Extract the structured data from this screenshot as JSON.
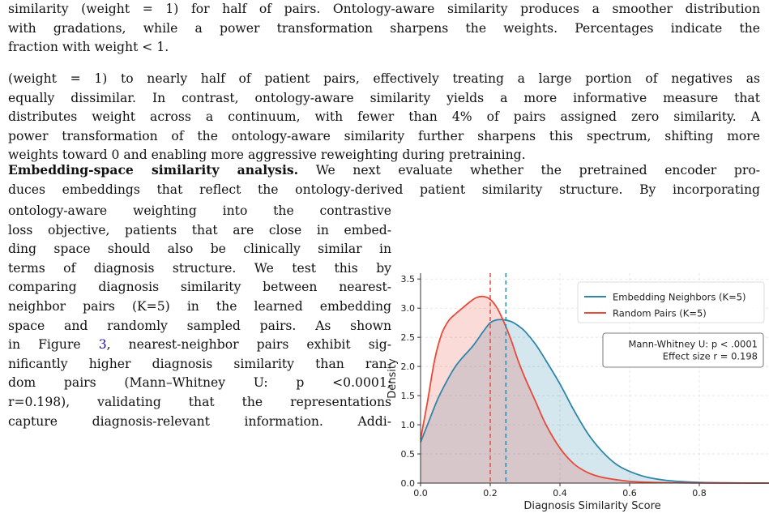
{
  "caption": {
    "lines": [
      "similarity (weight = 1) for half of pairs. Ontology-aware similarity produces a smoother distribution",
      "with gradations, while a power transformation sharpens the weights. Percentages indicate the",
      "fraction with weight < 1."
    ]
  },
  "body1": {
    "lines": [
      "(weight = 1) to nearly half of patient pairs, effectively treating a large portion of negatives as",
      "equally dissimilar. In contrast, ontology-aware similarity yields a more informative measure that",
      "distributes weight across a continuum, with fewer than 4% of pairs assigned zero similarity. A",
      "power transformation of the ontology-aware similarity further sharpens this spectrum, shifting more",
      "weights toward 0 and enabling more aggressive reweighting during pretraining."
    ]
  },
  "body2": {
    "heading": "Embedding-space similarity analysis.",
    "line1_rest": " We next evaluate whether the pretrained encoder pro-",
    "line2": "duces embeddings that reflect the ontology-derived patient similarity structure. By incorporating"
  },
  "left_column": {
    "lines": [
      "ontology-aware weighting into the contrastive",
      "loss objective, patients that are close in embed-",
      "ding space should also be clinically similar in",
      "terms of diagnosis structure. We test this by",
      "comparing diagnosis similarity between nearest-",
      "neighbor pairs (K=5) in the learned embedding",
      "space and randomly sampled pairs. As shown"
    ],
    "line8_pre": "in Figure ",
    "figure_ref": "3",
    "line8_post": ", nearest-neighbor pairs exhibit sig-",
    "lines_after": [
      "nificantly higher diagnosis similarity than ran-",
      "dom pairs (Mann–Whitney U:  p  <0.0001;",
      "r=0.198), validating that the representations",
      "capture diagnosis-relevant information. Addi-"
    ]
  },
  "chart_data": {
    "type": "area",
    "xlabel": "Diagnosis Similarity Score",
    "ylabel": "Density",
    "xlim": [
      0.0,
      1.0
    ],
    "ylim": [
      0.0,
      3.6
    ],
    "xticks": [
      "0.0",
      "0.2",
      "0.4",
      "0.6",
      "0.8"
    ],
    "yticks": [
      "0.0",
      "0.5",
      "1.0",
      "1.5",
      "2.0",
      "2.5",
      "3.0",
      "3.5"
    ],
    "grid": true,
    "legend_position": "top-right",
    "series": [
      {
        "name": "Embedding Neighbors (K=5)",
        "color": "#2e86ab",
        "mean": 0.245,
        "x": [
          0.0,
          0.02,
          0.05,
          0.08,
          0.1,
          0.12,
          0.15,
          0.18,
          0.2,
          0.22,
          0.24,
          0.26,
          0.28,
          0.3,
          0.33,
          0.36,
          0.4,
          0.44,
          0.48,
          0.52,
          0.56,
          0.6,
          0.65,
          0.7,
          0.75,
          0.8,
          0.85,
          0.9,
          0.95,
          1.0
        ],
        "y": [
          0.7,
          1.0,
          1.45,
          1.8,
          2.0,
          2.15,
          2.35,
          2.6,
          2.75,
          2.8,
          2.8,
          2.77,
          2.7,
          2.6,
          2.38,
          2.1,
          1.7,
          1.25,
          0.85,
          0.55,
          0.33,
          0.2,
          0.1,
          0.05,
          0.025,
          0.012,
          0.006,
          0.003,
          0.001,
          0.0
        ]
      },
      {
        "name": "Random Pairs (K=5)",
        "color": "#e84a3a",
        "mean": 0.2,
        "x": [
          0.0,
          0.02,
          0.04,
          0.06,
          0.08,
          0.1,
          0.12,
          0.14,
          0.16,
          0.18,
          0.2,
          0.22,
          0.24,
          0.26,
          0.28,
          0.3,
          0.33,
          0.36,
          0.4,
          0.44,
          0.48,
          0.52,
          0.56,
          0.6,
          0.65,
          0.7,
          0.8,
          0.9,
          1.0
        ],
        "y": [
          0.75,
          1.4,
          2.1,
          2.55,
          2.78,
          2.9,
          3.0,
          3.1,
          3.18,
          3.2,
          3.15,
          3.0,
          2.75,
          2.45,
          2.1,
          1.8,
          1.4,
          1.0,
          0.6,
          0.33,
          0.18,
          0.1,
          0.06,
          0.03,
          0.015,
          0.007,
          0.002,
          0.0,
          0.0
        ]
      }
    ],
    "annotation": {
      "line1": "Mann-Whitney U: p < .0001",
      "line2": "Effect size r = 0.198"
    }
  }
}
